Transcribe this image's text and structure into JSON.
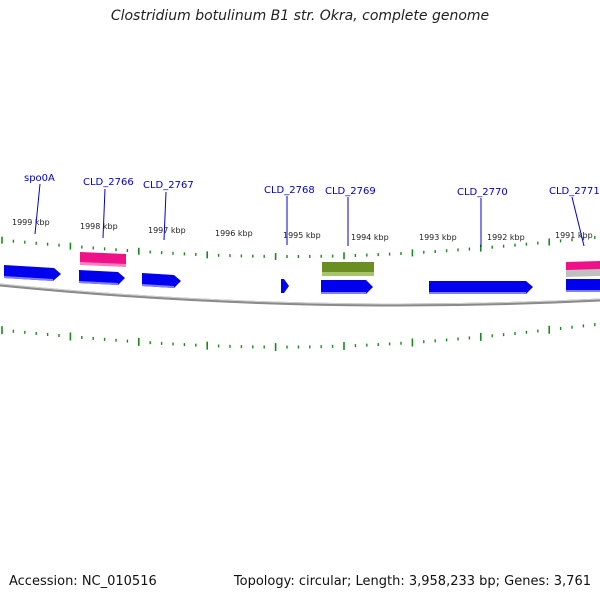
{
  "title": "Clostridium botulinum B1 str. Okra, complete genome",
  "footer": {
    "accession": "Accession: NC_010516",
    "summary": "Topology: circular; Length: 3,958,233 bp; Genes: 3,761"
  },
  "colors": {
    "cds": "#0000ee",
    "label": "#0000cc",
    "tick": "#1a8a1a",
    "rna_pink": "#ee1188",
    "misc_green": "#6b8e23",
    "backbone": "#888888"
  },
  "ruler": [
    {
      "kbp": 1999,
      "label": "1999 kbp"
    },
    {
      "kbp": 1998,
      "label": "1998 kbp"
    },
    {
      "kbp": 1997,
      "label": "1997 kbp"
    },
    {
      "kbp": 1996,
      "label": "1996 kbp"
    },
    {
      "kbp": 1995,
      "label": "1995 kbp"
    },
    {
      "kbp": 1994,
      "label": "1994 kbp"
    },
    {
      "kbp": 1993,
      "label": "1993 kbp"
    },
    {
      "kbp": 1992,
      "label": "1992 kbp"
    },
    {
      "kbp": 1991,
      "label": "1991 kbp"
    }
  ],
  "genes": [
    {
      "name": "spo0A",
      "type": "CDS"
    },
    {
      "name": "CLD_2766",
      "type": "CDS"
    },
    {
      "name": "CLD_2767",
      "type": "CDS"
    },
    {
      "name": "CLD_2768",
      "type": "CDS"
    },
    {
      "name": "CLD_2769",
      "type": "CDS"
    },
    {
      "name": "CLD_2770",
      "type": "CDS"
    },
    {
      "name": "CLD_2771",
      "type": "CDS"
    }
  ]
}
